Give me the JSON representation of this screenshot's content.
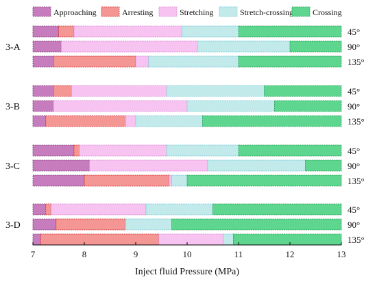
{
  "chart_data": {
    "type": "bar",
    "orientation": "horizontal",
    "stacked": true,
    "xlabel": "Inject fluid Pressure (MPa)",
    "xlim": [
      7,
      13
    ],
    "xticks": [
      "7",
      "8",
      "9",
      "10",
      "11",
      "12",
      "13"
    ],
    "legend_position": "top",
    "stages": [
      {
        "name": "Approaching",
        "color": "#c77dbd",
        "border": "#7a3a70"
      },
      {
        "name": "Arresting",
        "color": "#f49694",
        "border": "#d02a2a"
      },
      {
        "name": "Stretching",
        "color": "#f7c4f1",
        "border": "#d67fd1"
      },
      {
        "name": "Stretch-crossing",
        "color": "#c3eaea",
        "border": "#6cc6d6"
      },
      {
        "name": "Crossing",
        "color": "#5fd68f",
        "border": "#1e9a4f"
      }
    ],
    "groups": [
      {
        "label": "3-A",
        "rows": [
          {
            "angle": "45°",
            "boundaries": [
              7,
              7.5,
              7.8,
              9.9,
              11.0,
              13
            ]
          },
          {
            "angle": "90°",
            "boundaries": [
              7,
              7.55,
              7.55,
              10.2,
              12.0,
              13
            ]
          },
          {
            "angle": "135°",
            "boundaries": [
              7,
              7.4,
              9.0,
              9.25,
              11.0,
              13
            ]
          }
        ]
      },
      {
        "label": "3-B",
        "rows": [
          {
            "angle": "45°",
            "boundaries": [
              7,
              7.4,
              7.75,
              9.6,
              11.5,
              13
            ]
          },
          {
            "angle": "90°",
            "boundaries": [
              7,
              7.4,
              7.4,
              10.0,
              11.7,
              13
            ]
          },
          {
            "angle": "135°",
            "boundaries": [
              7,
              7.25,
              8.8,
              9.0,
              10.3,
              13
            ]
          }
        ]
      },
      {
        "label": "3-C",
        "rows": [
          {
            "angle": "45°",
            "boundaries": [
              7,
              7.8,
              7.9,
              9.6,
              11.0,
              13
            ]
          },
          {
            "angle": "90°",
            "boundaries": [
              7,
              8.1,
              8.1,
              10.4,
              12.3,
              13
            ]
          },
          {
            "angle": "135°",
            "boundaries": [
              7,
              8.0,
              9.65,
              9.7,
              10.0,
              13
            ]
          }
        ]
      },
      {
        "label": "3-D",
        "rows": [
          {
            "angle": "45°",
            "boundaries": [
              7,
              7.25,
              7.35,
              9.2,
              10.5,
              13
            ]
          },
          {
            "angle": "90°",
            "boundaries": [
              7,
              7.45,
              8.8,
              8.8,
              9.7,
              13
            ]
          },
          {
            "angle": "135°",
            "boundaries": [
              7,
              7.15,
              9.45,
              10.7,
              10.9,
              13
            ]
          }
        ]
      }
    ]
  }
}
